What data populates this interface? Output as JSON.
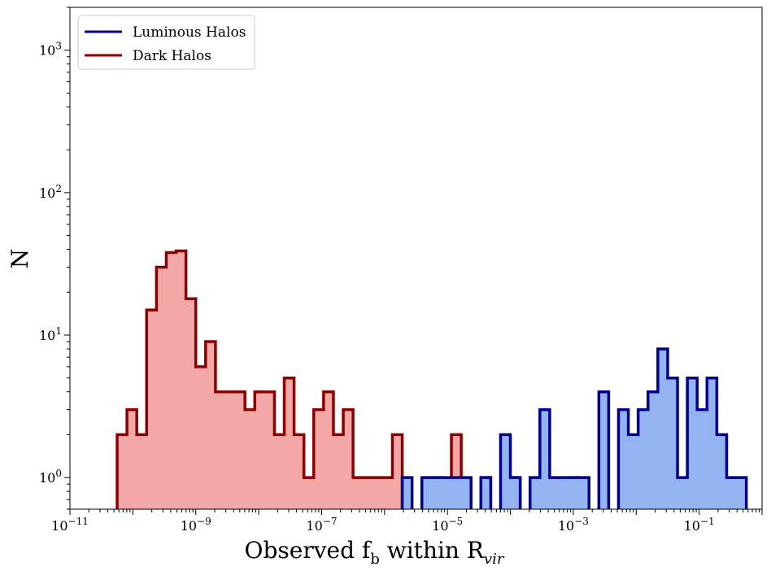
{
  "chart_data": {
    "type": "histogram",
    "xlabel": {
      "main": "Observed f",
      "sub1": "b",
      "mid": " within R",
      "sub2": "vir"
    },
    "ylabel": "N",
    "x_scale": "log",
    "y_scale": "log",
    "xlim": [
      1e-11,
      1
    ],
    "ylim": [
      0.6,
      2000
    ],
    "x_ticks": [
      {
        "exp": -11,
        "label_base": "10",
        "label_exp": "−11"
      },
      {
        "exp": -9,
        "label_base": "10",
        "label_exp": "−9"
      },
      {
        "exp": -7,
        "label_base": "10",
        "label_exp": "−7"
      },
      {
        "exp": -5,
        "label_base": "10",
        "label_exp": "−5"
      },
      {
        "exp": -3,
        "label_base": "10",
        "label_exp": "−3"
      },
      {
        "exp": -1,
        "label_base": "10",
        "label_exp": "−1"
      }
    ],
    "y_ticks": [
      {
        "exp": 0,
        "label_base": "10",
        "label_exp": "0"
      },
      {
        "exp": 1,
        "label_base": "10",
        "label_exp": "1"
      },
      {
        "exp": 2,
        "label_base": "10",
        "label_exp": "2"
      },
      {
        "exp": 3,
        "label_base": "10",
        "label_exp": "3"
      }
    ],
    "bin_log_start": -10.25,
    "bin_log_width": 0.15625,
    "legend_position": "upper-left",
    "series": [
      {
        "name": "Dark Halos",
        "edge_color": "#8b0000",
        "fill_color": "#f4a7a7",
        "counts": [
          2,
          3,
          2,
          15,
          30,
          38,
          39,
          18,
          6,
          9,
          4,
          4,
          4,
          3,
          4,
          4,
          2,
          5,
          2,
          1,
          3,
          4,
          2,
          3,
          1,
          1,
          1,
          1,
          2,
          0,
          0,
          0,
          1,
          0,
          2,
          0,
          0,
          1,
          0,
          0,
          1,
          0,
          0,
          0,
          0,
          0,
          1
        ]
      },
      {
        "name": "Luminous Halos",
        "edge_color": "#00008b",
        "fill_color": "#93b4f0",
        "counts": [
          0,
          0,
          0,
          0,
          0,
          0,
          0,
          0,
          0,
          0,
          0,
          0,
          0,
          0,
          0,
          0,
          0,
          0,
          0,
          0,
          0,
          0,
          0,
          0,
          0,
          0,
          0,
          0,
          0,
          1,
          0,
          1,
          1,
          1,
          1,
          1,
          0,
          1,
          0,
          2,
          1,
          0,
          1,
          3,
          1,
          1,
          1,
          1,
          0,
          4,
          0,
          3,
          2,
          3,
          4,
          8,
          5,
          1,
          5,
          3,
          5,
          2,
          1,
          1,
          0
        ]
      }
    ]
  }
}
